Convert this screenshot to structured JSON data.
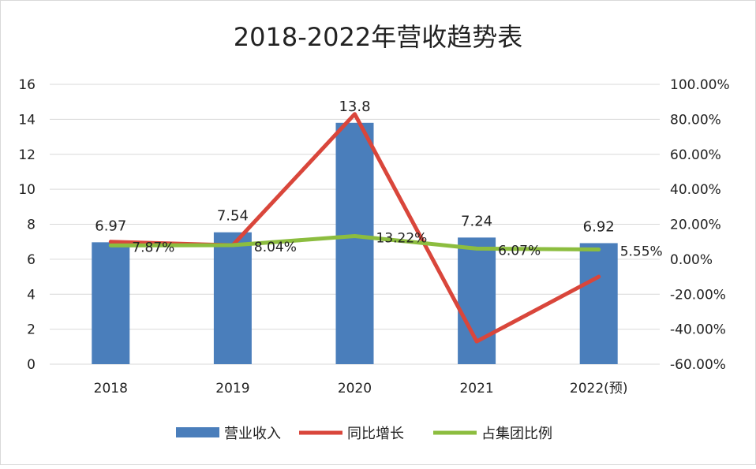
{
  "chart_data": {
    "type": "bar+line",
    "title": "2018-2022年营收趋势表",
    "categories": [
      "2018",
      "2019",
      "2020",
      "2021",
      "2022(预)"
    ],
    "left_axis": {
      "ylim": [
        0,
        16
      ],
      "ticks": [
        "0",
        "2",
        "4",
        "6",
        "8",
        "10",
        "12",
        "14",
        "16"
      ]
    },
    "right_axis": {
      "ylim": [
        -60,
        100
      ],
      "ticks": [
        "-60.00%",
        "-40.00%",
        "-20.00%",
        "0.00%",
        "20.00%",
        "40.00%",
        "60.00%",
        "80.00%",
        "100.00%"
      ]
    },
    "grid": true,
    "legend_position": "bottom",
    "series": [
      {
        "name": "营业收入",
        "type": "bar",
        "axis": "left",
        "color": "#4a7ebb",
        "values": [
          6.97,
          7.54,
          13.8,
          7.24,
          6.92
        ],
        "labels": [
          "6.97",
          "7.54",
          "13.8",
          "7.24",
          "6.92"
        ]
      },
      {
        "name": "同比增长",
        "type": "line",
        "axis": "right",
        "color": "#d9463b",
        "values": [
          10,
          8,
          83,
          -47,
          -10
        ]
      },
      {
        "name": "占集团比例",
        "type": "line",
        "axis": "right",
        "color": "#8cbd3f",
        "values": [
          7.87,
          8.04,
          13.22,
          6.07,
          5.55
        ],
        "labels": [
          "7.87%",
          "8.04%",
          "13.22%",
          "6.07%",
          "5.55%"
        ]
      }
    ]
  }
}
